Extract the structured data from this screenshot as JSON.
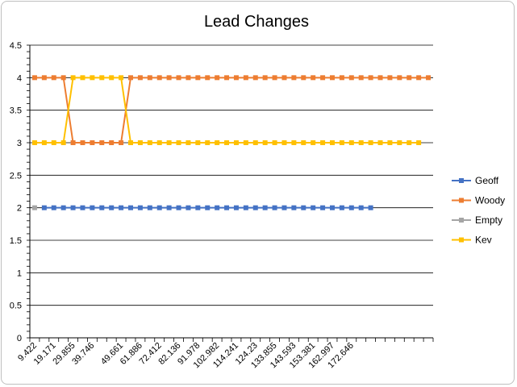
{
  "chart_data": {
    "type": "line",
    "title": "Lead Changes",
    "xlabel": "",
    "ylabel": "",
    "ylim": [
      0,
      4.5
    ],
    "y_ticks": [
      0,
      0.5,
      1,
      1.5,
      2,
      2.5,
      3,
      3.5,
      4,
      4.5
    ],
    "grid": true,
    "legend_position": "right",
    "x_count": 42,
    "x_tick_labels": [
      {
        "index": 0,
        "label": "9.422"
      },
      {
        "index": 2,
        "label": "19.171"
      },
      {
        "index": 4,
        "label": "29.855"
      },
      {
        "index": 6,
        "label": "39.746"
      },
      {
        "index": 9,
        "label": "49.661"
      },
      {
        "index": 11,
        "label": "61.886"
      },
      {
        "index": 13,
        "label": "72.412"
      },
      {
        "index": 15,
        "label": "82.136"
      },
      {
        "index": 17,
        "label": "91.978"
      },
      {
        "index": 19,
        "label": "102.982"
      },
      {
        "index": 21,
        "label": "114.241"
      },
      {
        "index": 23,
        "label": "124.23"
      },
      {
        "index": 25,
        "label": "133.855"
      },
      {
        "index": 27,
        "label": "143.593"
      },
      {
        "index": 29,
        "label": "153.381"
      },
      {
        "index": 31,
        "label": "162.997"
      },
      {
        "index": 33,
        "label": "172.646"
      }
    ],
    "series": [
      {
        "name": "Geoff",
        "color": "#4472C4",
        "start": 1,
        "values": [
          2,
          2,
          2,
          2,
          2,
          2,
          2,
          2,
          2,
          2,
          2,
          2,
          2,
          2,
          2,
          2,
          2,
          2,
          2,
          2,
          2,
          2,
          2,
          2,
          2,
          2,
          2,
          2,
          2,
          2,
          2,
          2,
          2,
          2,
          2
        ]
      },
      {
        "name": "Woody",
        "color": "#ED7D31",
        "start": 0,
        "values": [
          4,
          4,
          4,
          4,
          3,
          3,
          3,
          3,
          3,
          3,
          4,
          4,
          4,
          4,
          4,
          4,
          4,
          4,
          4,
          4,
          4,
          4,
          4,
          4,
          4,
          4,
          4,
          4,
          4,
          4,
          4,
          4,
          4,
          4,
          4,
          4,
          4,
          4,
          4,
          4,
          4,
          4
        ]
      },
      {
        "name": "Empty",
        "color": "#A5A5A5",
        "start": 0,
        "values": [
          2
        ]
      },
      {
        "name": "Kev",
        "color": "#FFC000",
        "start": 0,
        "values": [
          3,
          3,
          3,
          3,
          4,
          4,
          4,
          4,
          4,
          4,
          3,
          3,
          3,
          3,
          3,
          3,
          3,
          3,
          3,
          3,
          3,
          3,
          3,
          3,
          3,
          3,
          3,
          3,
          3,
          3,
          3,
          3,
          3,
          3,
          3,
          3,
          3,
          3,
          3,
          3,
          3
        ]
      }
    ]
  }
}
